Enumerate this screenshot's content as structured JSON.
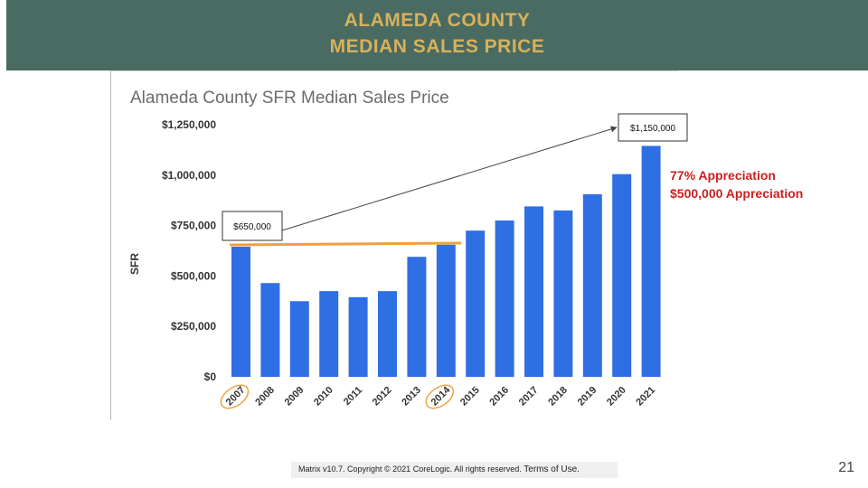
{
  "header": {
    "title_line1": "ALAMEDA COUNTY",
    "title_line2": "MEDIAN SALES PRICE"
  },
  "colors": {
    "header_bg": "#4a6b62",
    "header_text": "#d8b15a",
    "bar": "#2f6fe4",
    "trend_line": "#f0a040",
    "annotation_red": "#cc1f1f"
  },
  "chart_data": {
    "type": "bar",
    "title": "Alameda County SFR Median Sales Price",
    "ylabel": "SFR",
    "xlabel": "",
    "ylim": [
      0,
      1250000
    ],
    "yticks": [
      0,
      250000,
      500000,
      750000,
      1000000,
      1250000
    ],
    "ytick_labels": [
      "$0",
      "$250,000",
      "$500,000",
      "$750,000",
      "$1,000,000",
      "$1,250,000"
    ],
    "categories": [
      "2007",
      "2008",
      "2009",
      "2010",
      "2011",
      "2012",
      "2013",
      "2014",
      "2015",
      "2016",
      "2017",
      "2018",
      "2019",
      "2020",
      "2021"
    ],
    "values": [
      645000,
      465000,
      375000,
      425000,
      395000,
      425000,
      595000,
      655000,
      725000,
      775000,
      845000,
      825000,
      905000,
      1005000,
      1145000
    ],
    "grid": false,
    "highlighted_categories": [
      "2007",
      "2014"
    ],
    "annotations": {
      "start_label": "$650,000",
      "end_label": "$1,150,000",
      "appreciation_pct": "77% Appreciation",
      "appreciation_amt": "$500,000 Appreciation"
    }
  },
  "footer": {
    "copyright": "Matrix v10.7. Copyright © 2021 CoreLogic. All rights reserved.",
    "terms": "Terms of Use."
  },
  "page_number": "21"
}
